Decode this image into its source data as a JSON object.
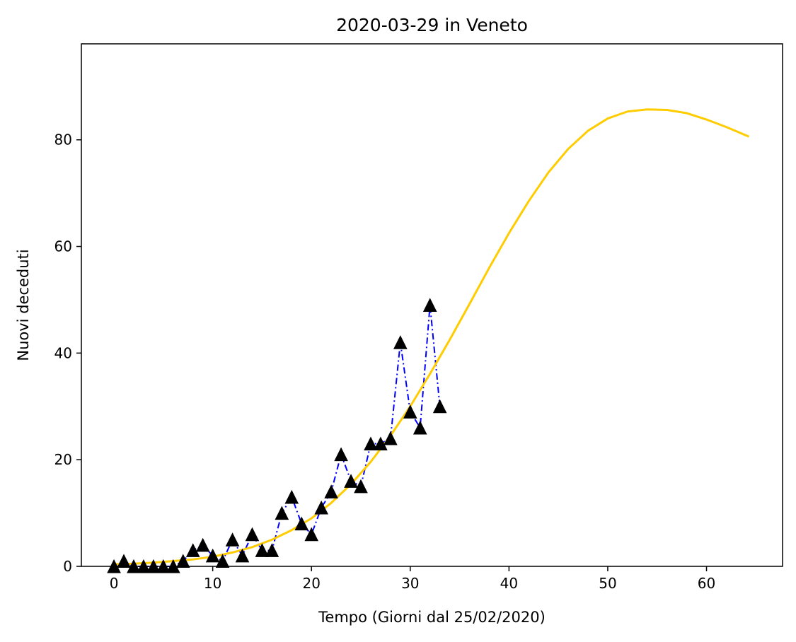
{
  "chart_data": {
    "type": "line",
    "title": "2020-03-29 in Veneto",
    "xlabel": "Tempo (Giorni dal 25/02/2020)",
    "ylabel": "Nuovi deceduti",
    "xlim": [
      -3.3,
      67.7
    ],
    "ylim": [
      0,
      98
    ],
    "xticks": [
      0,
      10,
      20,
      30,
      40,
      50,
      60
    ],
    "yticks": [
      0,
      20,
      40,
      60,
      80
    ],
    "grid": false,
    "legend": "none",
    "series": [
      {
        "style": "dash-dot line with triangle markers",
        "line_color": "#0000ff",
        "marker_color": "#000000",
        "x": [
          0,
          1,
          2,
          3,
          4,
          5,
          6,
          7,
          8,
          9,
          10,
          11,
          12,
          13,
          14,
          15,
          16,
          17,
          18,
          19,
          20,
          21,
          22,
          23,
          24,
          25,
          26,
          27,
          28,
          29,
          30,
          31,
          32,
          33
        ],
        "y": [
          0,
          1,
          0,
          0,
          0,
          0,
          0,
          1,
          3,
          4,
          2,
          1,
          5,
          2,
          6,
          3,
          3,
          10,
          13,
          8,
          6,
          11,
          14,
          21,
          16,
          15,
          23,
          23,
          24,
          42,
          29,
          26,
          49,
          30
        ]
      },
      {
        "style": "solid line",
        "line_color": "#ffcc00",
        "x": [
          0,
          2,
          4,
          6,
          8,
          10,
          12,
          14,
          16,
          18,
          20,
          22,
          24,
          26,
          28,
          30,
          32,
          34,
          36,
          38,
          40,
          42,
          44,
          46,
          48,
          50,
          52,
          54,
          56,
          58,
          60,
          62,
          64.3
        ],
        "y": [
          0.4,
          0.5,
          0.7,
          1.0,
          1.3,
          1.8,
          2.6,
          3.6,
          5.0,
          6.8,
          9.0,
          11.9,
          15.4,
          19.6,
          24.5,
          30.0,
          36.1,
          42.5,
          49.2,
          56.0,
          62.5,
          68.5,
          73.9,
          78.3,
          81.7,
          84.0,
          85.3,
          85.7,
          85.6,
          85.0,
          83.8,
          82.4,
          80.6
        ]
      }
    ]
  }
}
